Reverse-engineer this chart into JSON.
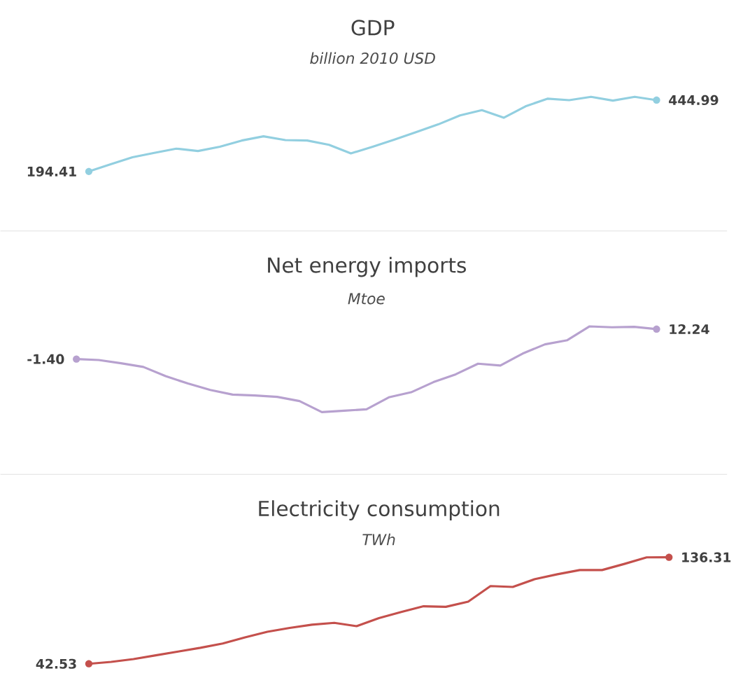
{
  "chart_data": [
    {
      "type": "line",
      "title": "GDP",
      "subtitle": "billion 2010 USD",
      "categories": [
        null,
        null,
        null,
        null,
        null,
        null,
        null,
        null,
        null,
        null,
        null,
        null,
        null,
        null,
        null,
        null,
        null,
        null,
        null,
        null,
        null,
        null,
        null,
        null,
        null,
        null,
        null
      ],
      "color": "#92cfe0",
      "values": [
        194.41,
        219.5,
        244.5,
        259.6,
        274.6,
        266.2,
        281.3,
        303.0,
        318.0,
        304.7,
        303.0,
        288.0,
        257.9,
        281.3,
        306.3,
        333.1,
        359.8,
        391.5,
        409.9,
        383.2,
        423.3,
        450.0,
        445.0,
        456.7,
        443.3,
        456.7,
        444.99
      ],
      "value_labels": [
        "194.41",
        null,
        null,
        null,
        null,
        null,
        null,
        null,
        null,
        null,
        null,
        null,
        null,
        null,
        null,
        null,
        null,
        null,
        null,
        null,
        null,
        null,
        null,
        null,
        null,
        null,
        "444.99"
      ]
    },
    {
      "type": "line",
      "title": "Net energy imports",
      "subtitle": "Mtoe",
      "categories": [
        null,
        null,
        null,
        null,
        null,
        null,
        null,
        null,
        null,
        null,
        null,
        null,
        null,
        null,
        null,
        null,
        null,
        null,
        null,
        null,
        null,
        null,
        null,
        null,
        null,
        null,
        null
      ],
      "color": "#b7a1cf",
      "values": [
        -1.4,
        -1.82,
        -3.29,
        -4.97,
        -9.16,
        -12.52,
        -15.46,
        -17.56,
        -17.98,
        -18.61,
        -20.5,
        -25.53,
        -24.9,
        -24.27,
        -18.82,
        -16.51,
        -11.89,
        -8.33,
        -3.5,
        -4.34,
        1.12,
        5.32,
        7.2,
        13.5,
        13.08,
        13.29,
        12.24
      ],
      "value_labels": [
        "-1.40",
        null,
        null,
        null,
        null,
        null,
        null,
        null,
        null,
        null,
        null,
        null,
        null,
        null,
        null,
        null,
        null,
        null,
        null,
        null,
        null,
        null,
        null,
        null,
        null,
        null,
        "12.24"
      ]
    },
    {
      "type": "line",
      "title": "Electricity consumption",
      "subtitle": "TWh",
      "categories": [
        null,
        null,
        null,
        null,
        null,
        null,
        null,
        null,
        null,
        null,
        null,
        null,
        null,
        null,
        null,
        null,
        null,
        null,
        null,
        null,
        null,
        null,
        null,
        null,
        null,
        null,
        null
      ],
      "color": "#c4504c",
      "values": [
        42.53,
        44.2,
        46.7,
        50.0,
        53.3,
        56.6,
        60.4,
        65.8,
        70.7,
        74.1,
        77.0,
        78.6,
        75.7,
        82.8,
        88.2,
        93.2,
        92.7,
        97.3,
        111.0,
        110.2,
        117.2,
        121.4,
        125.1,
        125.1,
        130.5,
        136.3,
        136.31
      ],
      "value_labels": [
        "42.53",
        null,
        null,
        null,
        null,
        null,
        null,
        null,
        null,
        null,
        null,
        null,
        null,
        null,
        null,
        null,
        null,
        null,
        null,
        null,
        null,
        null,
        null,
        null,
        null,
        null,
        "136.31"
      ]
    }
  ]
}
